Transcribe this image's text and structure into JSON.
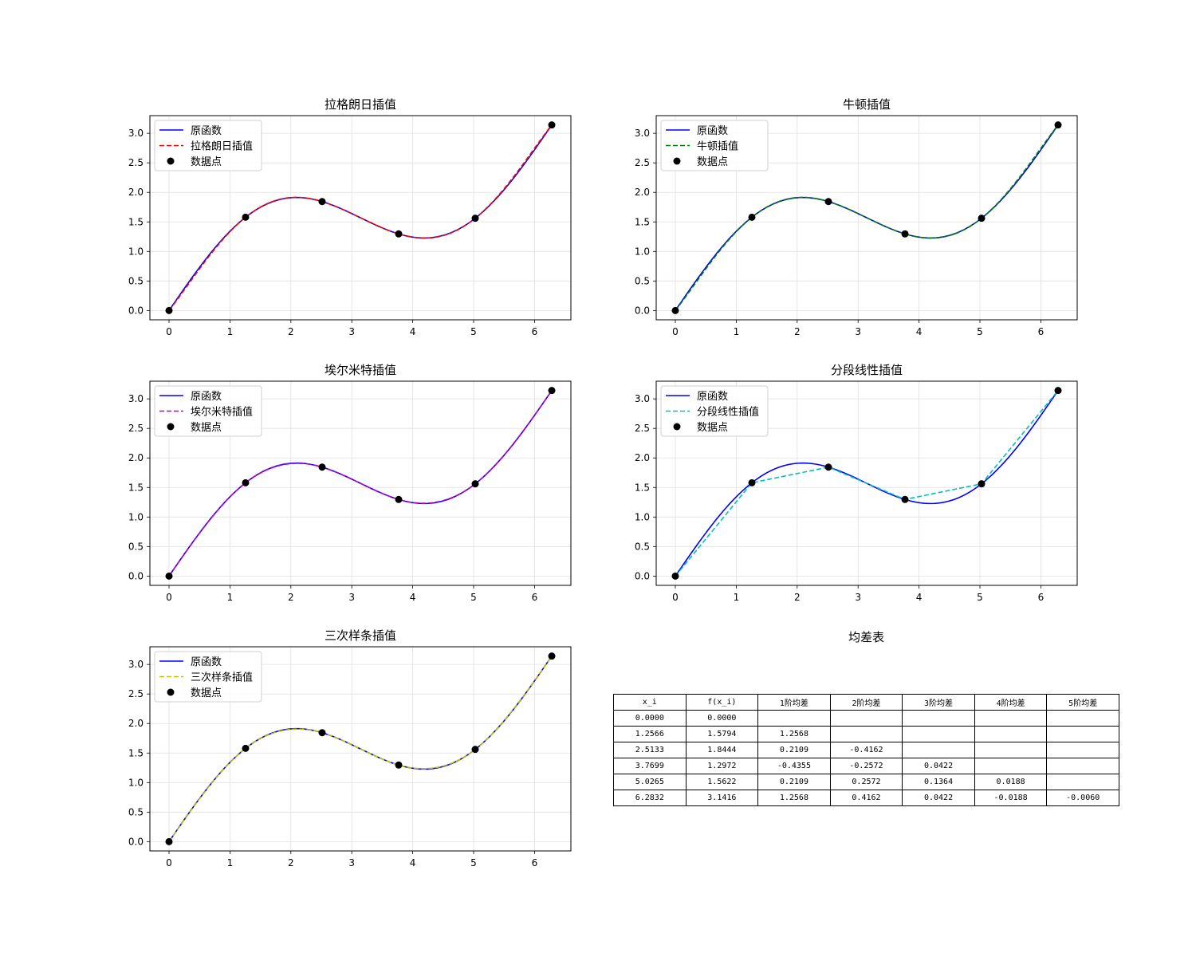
{
  "chart_data": [
    {
      "type": "line",
      "title": "拉格朗日插值",
      "xlim": [
        -0.314,
        6.597
      ],
      "ylim": [
        -0.157,
        3.299
      ],
      "xticks": [
        "0",
        "1",
        "2",
        "3",
        "4",
        "5",
        "6"
      ],
      "yticks": [
        "0.0",
        "0.5",
        "1.0",
        "1.5",
        "2.0",
        "2.5",
        "3.0"
      ],
      "grid": true,
      "legend_position": "upper-left",
      "series": [
        {
          "name": "原函数",
          "style": "solid",
          "color": "#0000ff",
          "function": "sin(x)+x/2"
        },
        {
          "name": "拉格朗日插值",
          "style": "dashed",
          "color": "#ff0000",
          "method": "lagrange"
        },
        {
          "name": "数据点",
          "style": "points",
          "color": "#000000"
        }
      ]
    },
    {
      "type": "line",
      "title": "牛顿插值",
      "xlim": [
        -0.314,
        6.597
      ],
      "ylim": [
        -0.157,
        3.299
      ],
      "xticks": [
        "0",
        "1",
        "2",
        "3",
        "4",
        "5",
        "6"
      ],
      "yticks": [
        "0.0",
        "0.5",
        "1.0",
        "1.5",
        "2.0",
        "2.5",
        "3.0"
      ],
      "grid": true,
      "legend_position": "upper-left",
      "series": [
        {
          "name": "原函数",
          "style": "solid",
          "color": "#0000ff",
          "function": "sin(x)+x/2"
        },
        {
          "name": "牛顿插值",
          "style": "dashed",
          "color": "#008000",
          "method": "newton"
        },
        {
          "name": "数据点",
          "style": "points",
          "color": "#000000"
        }
      ]
    },
    {
      "type": "line",
      "title": "埃尔米特插值",
      "xlim": [
        -0.314,
        6.597
      ],
      "ylim": [
        -0.157,
        3.299
      ],
      "xticks": [
        "0",
        "1",
        "2",
        "3",
        "4",
        "5",
        "6"
      ],
      "yticks": [
        "0.0",
        "0.5",
        "1.0",
        "1.5",
        "2.0",
        "2.5",
        "3.0"
      ],
      "grid": true,
      "legend_position": "upper-left",
      "series": [
        {
          "name": "原函数",
          "style": "solid",
          "color": "#0000ff",
          "function": "sin(x)+x/2"
        },
        {
          "name": "埃尔米特插值",
          "style": "dashed",
          "color": "#bf00bf",
          "method": "hermite"
        },
        {
          "name": "数据点",
          "style": "points",
          "color": "#000000"
        }
      ]
    },
    {
      "type": "line",
      "title": "分段线性插值",
      "xlim": [
        -0.314,
        6.597
      ],
      "ylim": [
        -0.157,
        3.299
      ],
      "xticks": [
        "0",
        "1",
        "2",
        "3",
        "4",
        "5",
        "6"
      ],
      "yticks": [
        "0.0",
        "0.5",
        "1.0",
        "1.5",
        "2.0",
        "2.5",
        "3.0"
      ],
      "grid": true,
      "legend_position": "upper-left",
      "series": [
        {
          "name": "原函数",
          "style": "solid",
          "color": "#0000ff",
          "function": "sin(x)+x/2"
        },
        {
          "name": "分段线性插值",
          "style": "dashed",
          "color": "#00bfbf",
          "method": "linear"
        },
        {
          "name": "数据点",
          "style": "points",
          "color": "#000000"
        }
      ]
    },
    {
      "type": "line",
      "title": "三次样条插值",
      "xlim": [
        -0.314,
        6.597
      ],
      "ylim": [
        -0.157,
        3.299
      ],
      "xticks": [
        "0",
        "1",
        "2",
        "3",
        "4",
        "5",
        "6"
      ],
      "yticks": [
        "0.0",
        "0.5",
        "1.0",
        "1.5",
        "2.0",
        "2.5",
        "3.0"
      ],
      "grid": true,
      "legend_position": "upper-left",
      "series": [
        {
          "name": "原函数",
          "style": "solid",
          "color": "#0000ff",
          "function": "sin(x)+x/2"
        },
        {
          "name": "三次样条插值",
          "style": "dashed",
          "color": "#bfbf00",
          "method": "cubic-spline"
        },
        {
          "name": "数据点",
          "style": "points",
          "color": "#000000"
        }
      ]
    },
    {
      "type": "table",
      "title": "均差表",
      "columns": [
        "x_i",
        "f(x_i)",
        "1阶均差",
        "2阶均差",
        "3阶均差",
        "4阶均差",
        "5阶均差"
      ],
      "rows": [
        [
          "0.0000",
          "0.0000",
          "",
          "",
          "",
          "",
          ""
        ],
        [
          "1.2566",
          "1.5794",
          "1.2568",
          "",
          "",
          "",
          ""
        ],
        [
          "2.5133",
          "1.8444",
          "0.2109",
          "-0.4162",
          "",
          "",
          ""
        ],
        [
          "3.7699",
          "1.2972",
          "-0.4355",
          "-0.2572",
          "0.0422",
          "",
          ""
        ],
        [
          "5.0265",
          "1.5622",
          "0.2109",
          "0.2572",
          "0.1364",
          "0.0188",
          ""
        ],
        [
          "6.2832",
          "3.1416",
          "1.2568",
          "0.4162",
          "0.0422",
          "-0.0188",
          "-0.0060"
        ]
      ]
    }
  ],
  "data_points": {
    "x": [
      0.0,
      1.2566,
      2.5133,
      3.7699,
      5.0265,
      6.2832
    ],
    "y": [
      0.0,
      1.5794,
      1.8444,
      1.2972,
      1.5622,
      3.1416
    ]
  },
  "colors": {
    "original": "#0000ff",
    "points": "#000000",
    "grid": "#e0e0e0",
    "axes": "#000000"
  }
}
